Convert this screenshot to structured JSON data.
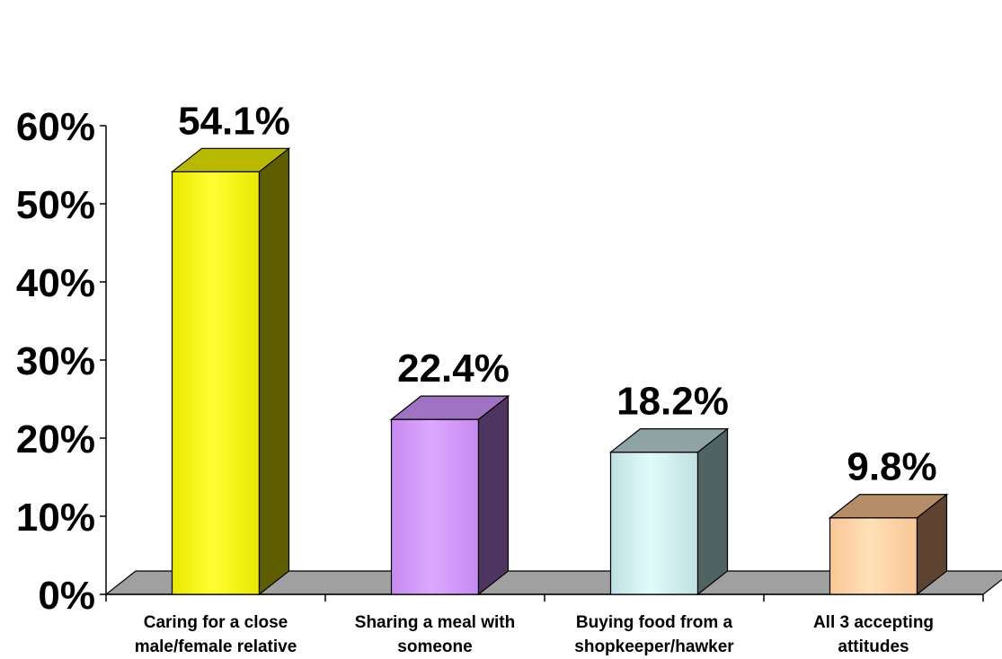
{
  "chart_data": {
    "type": "bar",
    "categories": [
      [
        "Caring for a close",
        "male/female relative"
      ],
      [
        "Sharing a meal with",
        "someone"
      ],
      [
        "Buying food from a",
        "shopkeeper/hawker"
      ],
      [
        "All 3 accepting",
        "attitudes"
      ]
    ],
    "values": [
      54.1,
      22.4,
      18.2,
      9.8
    ],
    "data_labels": [
      "54.1%",
      "22.4%",
      "18.2%",
      "9.8%"
    ],
    "y_ticks": [
      "0%",
      "10%",
      "20%",
      "30%",
      "40%",
      "50%",
      "60%"
    ],
    "ylim": [
      0,
      60
    ],
    "grid": false,
    "legend": "none",
    "colors": [
      {
        "light": "#FFFF33",
        "mid": "#E8E800",
        "dark": "#5E5E00",
        "top": "#B8B800"
      },
      {
        "light": "#DDA8FF",
        "mid": "#C58AF0",
        "dark": "#4E355F",
        "top": "#9F72C4"
      },
      {
        "light": "#E2FBFB",
        "mid": "#BFE0E2",
        "dark": "#4F6362",
        "top": "#8EA3A4"
      },
      {
        "light": "#FFE0B8",
        "mid": "#F9C795",
        "dark": "#5E4330",
        "top": "#B58D66"
      }
    ],
    "floor_color": "#A0A0A0"
  }
}
